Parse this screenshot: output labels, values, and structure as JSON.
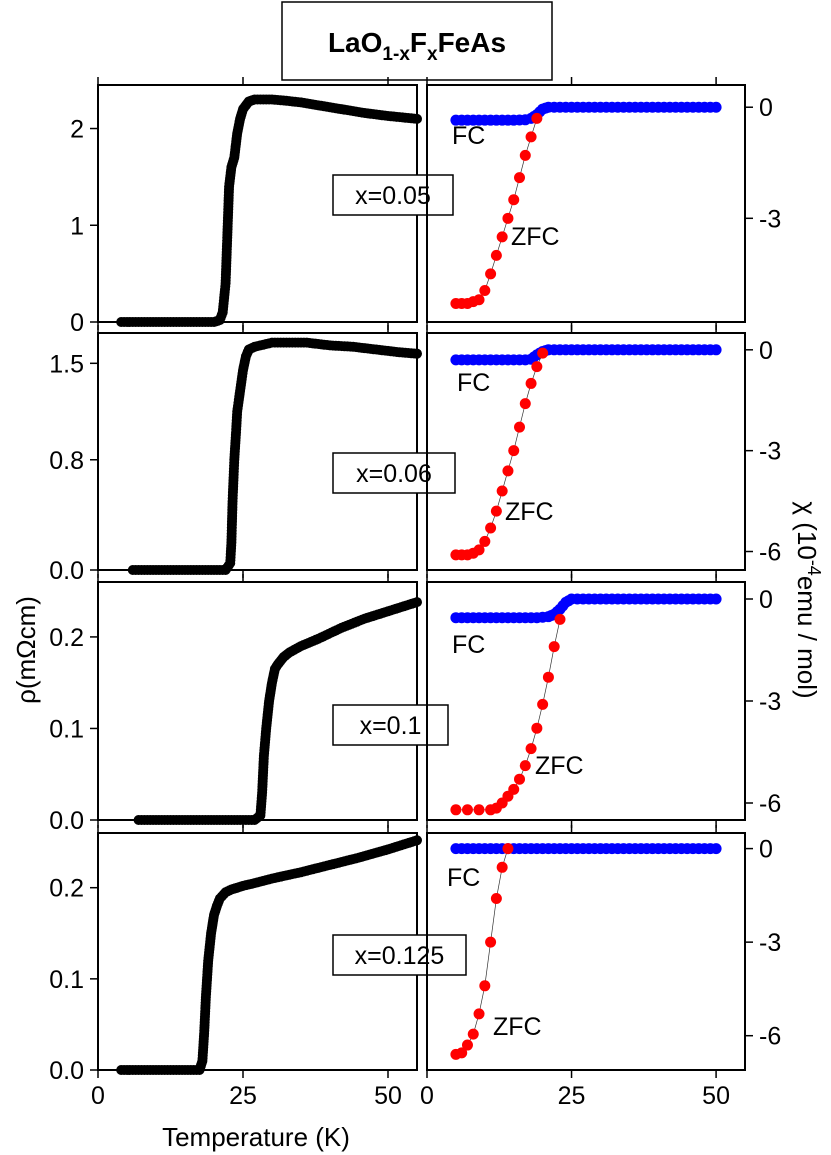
{
  "title": {
    "main_a": "LaO",
    "sub_a": "1-x",
    "main_b": "F",
    "sub_b": "x",
    "main_c": "FeAs"
  },
  "xlabel": "Temperature (K)",
  "ylabel_left": "ρ(mΩcm)",
  "ylabel_right": {
    "pre": "χ (10",
    "sup": "-4",
    "post": "emu / mol)"
  },
  "colors": {
    "resistivity": "#000000",
    "fc": "#0000ff",
    "zfc": "#ff0000"
  },
  "chart_data": [
    {
      "type": "scatter",
      "panel": "resistivity",
      "label": "x=0.05",
      "xlim": [
        0,
        55
      ],
      "ylim": [
        0,
        2.45
      ],
      "xticks": [
        0,
        25,
        50
      ],
      "xtick_labels": [
        "0",
        "25",
        "50"
      ],
      "yticks": [
        0,
        1,
        2
      ],
      "ytick_labels": [
        "0",
        "1",
        "2"
      ],
      "series": [
        {
          "x": [
            4,
            6,
            8,
            10,
            12,
            14,
            16,
            18,
            20,
            21,
            21.5,
            22,
            22.3,
            22.6,
            23,
            23.5,
            24,
            24.5,
            25,
            26,
            27,
            28,
            30,
            32,
            35,
            38,
            42,
            46,
            50,
            55
          ],
          "y": [
            0,
            0,
            0,
            0,
            0,
            0,
            0,
            0,
            0,
            0.02,
            0.1,
            0.4,
            0.9,
            1.4,
            1.6,
            1.7,
            1.95,
            2.1,
            2.2,
            2.28,
            2.3,
            2.3,
            2.3,
            2.29,
            2.27,
            2.24,
            2.2,
            2.16,
            2.13,
            2.1
          ]
        }
      ]
    },
    {
      "type": "scatter",
      "panel": "susceptibility",
      "xlim": [
        0,
        55
      ],
      "ylim": [
        -5.8,
        0.6
      ],
      "xticks": [
        0,
        25,
        50
      ],
      "xtick_labels": [
        "0",
        "25",
        "50"
      ],
      "yticks": [
        0,
        -3
      ],
      "ytick_labels": [
        "0",
        "-3"
      ],
      "fc_label": "FC",
      "zfc_label": "ZFC",
      "series": [
        {
          "name": "FC",
          "x": [
            5,
            7,
            9,
            11,
            13,
            15,
            17,
            18,
            19,
            20,
            21,
            23,
            25,
            30,
            35,
            40,
            45,
            50
          ],
          "y": [
            -0.35,
            -0.35,
            -0.35,
            -0.35,
            -0.35,
            -0.35,
            -0.34,
            -0.3,
            -0.2,
            -0.05,
            0,
            0,
            0,
            0,
            0,
            0,
            0,
            0
          ]
        },
        {
          "name": "ZFC",
          "x": [
            5,
            6,
            7,
            8,
            9,
            10,
            11,
            12,
            13,
            14,
            15,
            16,
            17,
            18,
            19
          ],
          "y": [
            -5.3,
            -5.3,
            -5.3,
            -5.25,
            -5.2,
            -4.95,
            -4.5,
            -4.0,
            -3.5,
            -3.0,
            -2.5,
            -1.9,
            -1.3,
            -0.8,
            -0.3
          ]
        }
      ]
    },
    {
      "type": "scatter",
      "panel": "resistivity",
      "label": "x=0.06",
      "xlim": [
        0,
        55
      ],
      "ylim": [
        0,
        1.72
      ],
      "xticks": [
        0,
        25,
        50
      ],
      "xtick_labels": [
        "0",
        "25",
        "50"
      ],
      "yticks": [
        0,
        0.8,
        1.5
      ],
      "ytick_labels": [
        "0.0",
        "0.8",
        "1.5"
      ],
      "series": [
        {
          "x": [
            6,
            8,
            10,
            12,
            14,
            16,
            18,
            20,
            22,
            22.8,
            23,
            23.2,
            23.5,
            23.8,
            24,
            24.5,
            25,
            25.5,
            26,
            27,
            28,
            30,
            33,
            36,
            40,
            44,
            48,
            52,
            55
          ],
          "y": [
            0,
            0,
            0,
            0,
            0,
            0,
            0,
            0,
            0,
            0.05,
            0.2,
            0.5,
            0.8,
            1.0,
            1.15,
            1.3,
            1.45,
            1.55,
            1.6,
            1.62,
            1.63,
            1.65,
            1.65,
            1.65,
            1.63,
            1.62,
            1.6,
            1.58,
            1.57
          ]
        }
      ]
    },
    {
      "type": "scatter",
      "panel": "susceptibility",
      "xlim": [
        0,
        55
      ],
      "ylim": [
        -6.55,
        0.5
      ],
      "xticks": [
        0,
        25,
        50
      ],
      "xtick_labels": [
        "0",
        "25",
        "50"
      ],
      "yticks": [
        0,
        -3,
        -6
      ],
      "ytick_labels": [
        "0",
        "-3",
        "-6"
      ],
      "fc_label": "FC",
      "zfc_label": "ZFC",
      "series": [
        {
          "name": "FC",
          "x": [
            5,
            7,
            9,
            11,
            13,
            15,
            17,
            18,
            19,
            20,
            21,
            23,
            25,
            30,
            35,
            40,
            45,
            50
          ],
          "y": [
            -0.3,
            -0.3,
            -0.3,
            -0.3,
            -0.3,
            -0.3,
            -0.3,
            -0.28,
            -0.15,
            -0.05,
            0,
            0,
            0,
            0,
            0,
            0,
            0,
            0
          ]
        },
        {
          "name": "ZFC",
          "x": [
            5,
            6,
            7,
            8,
            9,
            10,
            11,
            12,
            13,
            14,
            15,
            16,
            17,
            18,
            19,
            20
          ],
          "y": [
            -6.1,
            -6.1,
            -6.1,
            -6.05,
            -5.95,
            -5.7,
            -5.3,
            -4.8,
            -4.2,
            -3.6,
            -3.0,
            -2.3,
            -1.6,
            -1.0,
            -0.5,
            -0.1
          ]
        }
      ]
    },
    {
      "type": "scatter",
      "panel": "resistivity",
      "label": "x=0.1",
      "xlim": [
        0,
        55
      ],
      "ylim": [
        0,
        0.26
      ],
      "xticks": [
        0,
        25,
        50
      ],
      "xtick_labels": [
        "0",
        "25",
        "50"
      ],
      "yticks": [
        0,
        0.1,
        0.2
      ],
      "ytick_labels": [
        "0.0",
        "0.1",
        "0.2"
      ],
      "series": [
        {
          "x": [
            7,
            10,
            13,
            16,
            19,
            22,
            25,
            27,
            28,
            28.3,
            28.6,
            29,
            29.5,
            30,
            30.5,
            31,
            32,
            33,
            35,
            38,
            42,
            46,
            50,
            55
          ],
          "y": [
            0,
            0,
            0,
            0,
            0,
            0,
            0,
            0,
            0.005,
            0.03,
            0.07,
            0.1,
            0.13,
            0.15,
            0.165,
            0.17,
            0.178,
            0.183,
            0.19,
            0.198,
            0.21,
            0.22,
            0.228,
            0.238
          ]
        }
      ]
    },
    {
      "type": "scatter",
      "panel": "susceptibility",
      "xlim": [
        0,
        55
      ],
      "ylim": [
        -6.5,
        0.5
      ],
      "xticks": [
        0,
        25,
        50
      ],
      "xtick_labels": [
        "0",
        "25",
        "50"
      ],
      "yticks": [
        0,
        -3,
        -6
      ],
      "ytick_labels": [
        "0",
        "-3",
        "-6"
      ],
      "fc_label": "FC",
      "zfc_label": "ZFC",
      "series": [
        {
          "name": "FC",
          "x": [
            5,
            7,
            9,
            11,
            13,
            15,
            17,
            19,
            21,
            22,
            23,
            24,
            25,
            27,
            30,
            35,
            40,
            45,
            50
          ],
          "y": [
            -0.55,
            -0.55,
            -0.55,
            -0.55,
            -0.55,
            -0.55,
            -0.55,
            -0.55,
            -0.52,
            -0.45,
            -0.3,
            -0.1,
            0,
            0,
            0,
            0,
            0,
            0,
            0
          ]
        },
        {
          "name": "ZFC",
          "x": [
            5,
            7,
            9,
            11,
            12,
            13,
            14,
            15,
            16,
            17,
            18,
            19,
            20,
            21,
            22,
            23
          ],
          "y": [
            -6.2,
            -6.2,
            -6.2,
            -6.2,
            -6.15,
            -6.0,
            -5.8,
            -5.6,
            -5.3,
            -4.9,
            -4.4,
            -3.8,
            -3.1,
            -2.3,
            -1.4,
            -0.6
          ]
        }
      ]
    },
    {
      "type": "scatter",
      "panel": "resistivity",
      "label": "x=0.125",
      "xlim": [
        0,
        55
      ],
      "ylim": [
        0,
        0.26
      ],
      "xticks": [
        0,
        25,
        50
      ],
      "xtick_labels": [
        "0",
        "25",
        "50"
      ],
      "yticks": [
        0,
        0.1,
        0.2
      ],
      "ytick_labels": [
        "0.0",
        "0.1",
        "0.2"
      ],
      "series": [
        {
          "x": [
            4,
            7,
            10,
            13,
            16,
            17.5,
            18,
            18.3,
            18.6,
            19,
            19.5,
            20,
            20.5,
            21,
            22,
            23,
            24,
            25,
            27,
            30,
            35,
            40,
            45,
            50,
            55
          ],
          "y": [
            0,
            0,
            0,
            0,
            0,
            0,
            0.01,
            0.04,
            0.08,
            0.12,
            0.15,
            0.17,
            0.18,
            0.188,
            0.195,
            0.198,
            0.2,
            0.202,
            0.205,
            0.21,
            0.217,
            0.225,
            0.233,
            0.242,
            0.252
          ]
        }
      ]
    },
    {
      "type": "scatter",
      "panel": "susceptibility",
      "xlim": [
        0,
        55
      ],
      "ylim": [
        -7.1,
        0.5
      ],
      "xticks": [
        0,
        25,
        50
      ],
      "xtick_labels": [
        "0",
        "25",
        "50"
      ],
      "yticks": [
        0,
        -3,
        -6
      ],
      "ytick_labels": [
        "0",
        "-3",
        "-6"
      ],
      "fc_label": "FC",
      "zfc_label": "ZFC",
      "series": [
        {
          "name": "FC",
          "x": [
            5,
            7,
            9,
            11,
            13,
            15,
            17,
            20,
            25,
            30,
            35,
            40,
            45,
            50
          ],
          "y": [
            0,
            0,
            0,
            0,
            0,
            0,
            0,
            0,
            0,
            0,
            0,
            0,
            0,
            0
          ]
        },
        {
          "name": "ZFC",
          "x": [
            5,
            6,
            7,
            8,
            9,
            10,
            11,
            12,
            13,
            14
          ],
          "y": [
            -6.6,
            -6.55,
            -6.3,
            -5.95,
            -5.3,
            -4.4,
            -3.0,
            -1.6,
            -0.6,
            0
          ]
        }
      ]
    }
  ]
}
